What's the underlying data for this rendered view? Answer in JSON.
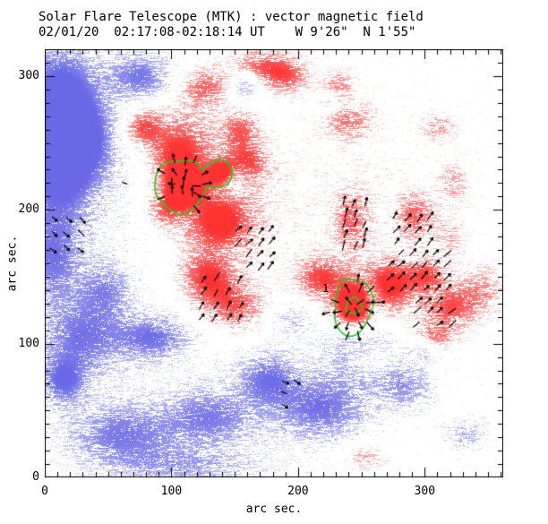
{
  "figure": {
    "title": "Solar Flare Telescope (MTK) : vector magnetic field",
    "subtitle": "02/01/20  02:17:08-02:18:14 UT    W 9'26\"  N 1'55\""
  },
  "axes": {
    "xlabel": "arc sec.",
    "ylabel": "arc sec.",
    "x_ticks_major": [
      0,
      100,
      200,
      300
    ],
    "y_ticks_major": [
      0,
      100,
      200,
      300
    ],
    "minor_tick_step": 10
  },
  "colors": {
    "positive_polarity": "#fa5a5a",
    "negative_polarity": "#7d7de6",
    "contour": "#1ecc1e",
    "vectors": "#000000",
    "axis": "#000000",
    "background": "#ffffff"
  },
  "chart_data": {
    "type": "heatmap",
    "title": "Solar Flare Telescope (MTK) : vector magnetic field",
    "subtitle": "02/01/20  02:17:08-02:18:14 UT    W 9'26\"  N 1'55\"",
    "xlabel": "arc sec.",
    "ylabel": "arc sec.",
    "xlim": [
      0,
      362
    ],
    "ylim": [
      0,
      320
    ],
    "x_ticks_major": [
      0,
      100,
      200,
      300
    ],
    "y_ticks_major": [
      0,
      100,
      200,
      300
    ],
    "minor_tick_step": 10,
    "field_blobs_columns": [
      "x",
      "y",
      "sigma_x",
      "sigma_y",
      "amplitude",
      "polarity"
    ],
    "field_blobs": [
      [
        12,
        288,
        20,
        26,
        0.7,
        -1
      ],
      [
        8,
        230,
        22,
        38,
        0.75,
        -1
      ],
      [
        6,
        160,
        14,
        20,
        0.5,
        -1
      ],
      [
        30,
        252,
        18,
        22,
        0.6,
        -1
      ],
      [
        75,
        300,
        17,
        12,
        0.65,
        -1
      ],
      [
        158,
        293,
        9,
        9,
        0.5,
        -1
      ],
      [
        148,
        224,
        8,
        8,
        0.45,
        -1
      ],
      [
        28,
        105,
        22,
        20,
        0.6,
        -1
      ],
      [
        48,
        140,
        14,
        14,
        0.45,
        -1
      ],
      [
        85,
        105,
        20,
        11,
        0.65,
        -1
      ],
      [
        14,
        72,
        12,
        12,
        0.65,
        -1
      ],
      [
        60,
        32,
        30,
        16,
        0.6,
        -1
      ],
      [
        130,
        45,
        25,
        15,
        0.55,
        -1
      ],
      [
        176,
        74,
        16,
        14,
        0.6,
        -1
      ],
      [
        218,
        52,
        24,
        16,
        0.65,
        -1
      ],
      [
        250,
        92,
        20,
        16,
        0.6,
        -1
      ],
      [
        284,
        68,
        16,
        12,
        0.45,
        -1
      ],
      [
        332,
        32,
        11,
        8,
        0.4,
        -1
      ],
      [
        258,
        135,
        6,
        9,
        0.45,
        -1
      ],
      [
        222,
        280,
        6,
        5,
        0.35,
        -1
      ],
      [
        110,
        8,
        40,
        10,
        0.4,
        -1
      ],
      [
        302,
        96,
        8,
        6,
        0.4,
        -1
      ],
      [
        195,
        120,
        14,
        10,
        0.35,
        -1
      ],
      [
        40,
        200,
        40,
        90,
        0.12,
        -1
      ],
      [
        150,
        60,
        90,
        40,
        0.1,
        -1
      ],
      [
        127,
        292,
        14,
        10,
        0.55,
        1
      ],
      [
        170,
        307,
        16,
        9,
        0.6,
        1
      ],
      [
        192,
        300,
        12,
        9,
        0.5,
        1
      ],
      [
        232,
        295,
        8,
        7,
        0.4,
        1
      ],
      [
        77,
        262,
        11,
        10,
        0.65,
        1
      ],
      [
        104,
        240,
        14,
        12,
        0.6,
        1
      ],
      [
        109,
        218,
        11,
        10,
        1.0,
        1
      ],
      [
        140,
        228,
        8,
        7,
        0.8,
        1
      ],
      [
        138,
        190,
        17,
        14,
        0.65,
        1
      ],
      [
        128,
        150,
        15,
        13,
        0.7,
        1
      ],
      [
        160,
        236,
        11,
        10,
        0.55,
        1
      ],
      [
        95,
        200,
        10,
        9,
        0.5,
        1
      ],
      [
        150,
        128,
        18,
        13,
        0.6,
        1
      ],
      [
        154,
        260,
        10,
        10,
        0.5,
        1
      ],
      [
        239,
        266,
        13,
        10,
        0.45,
        1
      ],
      [
        310,
        262,
        9,
        7,
        0.35,
        1
      ],
      [
        242,
        192,
        10,
        16,
        0.5,
        1
      ],
      [
        292,
        196,
        10,
        12,
        0.5,
        1
      ],
      [
        218,
        150,
        13,
        10,
        0.6,
        1
      ],
      [
        244,
        128,
        10,
        10,
        1.0,
        1
      ],
      [
        272,
        146,
        14,
        11,
        0.65,
        1
      ],
      [
        320,
        128,
        14,
        11,
        0.6,
        1
      ],
      [
        302,
        152,
        10,
        8,
        0.55,
        1
      ],
      [
        308,
        105,
        11,
        8,
        0.5,
        1
      ],
      [
        345,
        140,
        12,
        12,
        0.4,
        1
      ],
      [
        255,
        88,
        13,
        9,
        0.5,
        1
      ],
      [
        253,
        15,
        12,
        8,
        0.35,
        1
      ],
      [
        322,
        220,
        8,
        12,
        0.3,
        1
      ],
      [
        320,
        180,
        8,
        10,
        0.28,
        1
      ],
      [
        110,
        260,
        20,
        16,
        0.35,
        1
      ],
      [
        135,
        210,
        30,
        28,
        0.3,
        1
      ],
      [
        255,
        135,
        30,
        16,
        0.3,
        1
      ],
      [
        240,
        200,
        70,
        60,
        0.1,
        1
      ]
    ],
    "contours": {
      "color": "#1ecc1e",
      "label": {
        "text": "1",
        "x": 222,
        "y": 141
      },
      "sets": [
        {
          "wobble": 0.05,
          "circles": [
            {
              "x": 107,
              "y": 218,
              "r": 20
            },
            {
              "x": 138,
              "y": 227,
              "r": 10
            }
          ]
        },
        {
          "wobble": 0.06,
          "circles": [
            {
              "x": 244,
              "y": 133,
              "r": 15
            },
            {
              "x": 243,
              "y": 121,
              "r": 14
            }
          ]
        },
        {
          "wobble": 0.1,
          "circles": [
            {
              "x": 244,
              "y": 128,
              "r": 6
            }
          ]
        }
      ]
    },
    "vectors": {
      "color": "#000000",
      "radial_clusters": [
        {
          "cx": 109,
          "cy": 218,
          "rmin": 6,
          "rmax": 26,
          "step": 9,
          "len": 10,
          "sector": [
            -70,
            220
          ]
        },
        {
          "cx": 244,
          "cy": 128,
          "rmin": 3,
          "rmax": 23,
          "step": 9,
          "len": 10,
          "sector": [
            -180,
            180
          ]
        }
      ],
      "uniform_clusters": [
        {
          "x": 18,
          "y": 176,
          "angle": -42,
          "cols": 3,
          "rows": 4,
          "step": 11,
          "len": 9
        },
        {
          "x": 109,
          "y": 218,
          "angle": 90,
          "cols": 3,
          "rows": 2,
          "step": 8,
          "len": 10
        },
        {
          "x": 166,
          "y": 172,
          "angle": 48,
          "cols": 4,
          "rows": 4,
          "step": 9,
          "len": 10
        },
        {
          "x": 245,
          "y": 190,
          "angle": 72,
          "cols": 3,
          "rows": 5,
          "step": 8,
          "len": 10
        },
        {
          "x": 291,
          "y": 186,
          "angle": 52,
          "cols": 4,
          "rows": 3,
          "step": 9,
          "len": 10
        },
        {
          "x": 296,
          "y": 155,
          "angle": 46,
          "cols": 6,
          "rows": 4,
          "step": 9,
          "len": 10
        },
        {
          "x": 308,
          "y": 124,
          "angle": 40,
          "cols": 4,
          "rows": 3,
          "step": 9,
          "len": 10
        },
        {
          "x": 194,
          "y": 62,
          "angle": -28,
          "cols": 2,
          "rows": 3,
          "step": 9,
          "len": 8
        },
        {
          "x": 140,
          "y": 134,
          "angle": 58,
          "cols": 4,
          "rows": 4,
          "step": 10,
          "len": 10
        }
      ],
      "single_arrows": [
        {
          "x": 63,
          "y": 220,
          "angle": -20,
          "len": 6
        }
      ]
    }
  }
}
